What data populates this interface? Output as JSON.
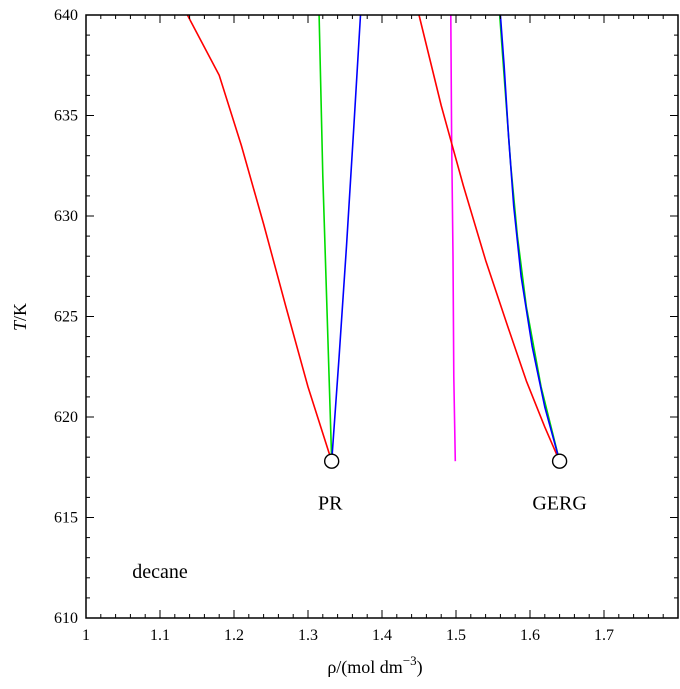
{
  "chart_data": {
    "type": "line",
    "xlabel": "ρ/(mol dm",
    "xlabel_sup": "−3",
    "xlabel_close": ")",
    "ylabel_italic": "T",
    "ylabel_rest": "/K",
    "xlim": [
      1,
      1.8
    ],
    "ylim": [
      610,
      640
    ],
    "xticks": [
      1,
      1.1,
      1.2,
      1.3,
      1.4,
      1.5,
      1.6,
      1.7
    ],
    "xtick_labels": [
      "1",
      "1.1",
      "1.2",
      "1.3",
      "1.4",
      "1.5",
      "1.6",
      "1.7"
    ],
    "yticks": [
      610,
      615,
      620,
      625,
      630,
      635,
      640
    ],
    "ytick_labels": [
      "610",
      "615",
      "620",
      "625",
      "630",
      "635",
      "640"
    ],
    "grid": false,
    "annotations": [
      {
        "text": "decane",
        "x": 1.1,
        "y": 612.0
      },
      {
        "text": "PR",
        "x": 1.33,
        "y": 615.4
      },
      {
        "text": "GERG",
        "x": 1.64,
        "y": 615.4
      }
    ],
    "critical_points": [
      {
        "x": 1.332,
        "y": 617.8
      },
      {
        "x": 1.64,
        "y": 617.8
      }
    ],
    "series": [
      {
        "color": "#ff0000",
        "x": [
          1.332,
          1.3,
          1.27,
          1.24,
          1.21,
          1.18,
          1.137
        ],
        "y": [
          617.8,
          621.5,
          625.5,
          629.6,
          633.5,
          637.0,
          640
        ]
      },
      {
        "color": "#00dd00",
        "x": [
          1.332,
          1.326,
          1.32,
          1.315
        ],
        "y": [
          617.8,
          625.0,
          632.0,
          640
        ]
      },
      {
        "color": "#0000ff",
        "x": [
          1.332,
          1.342,
          1.352,
          1.362,
          1.371
        ],
        "y": [
          617.8,
          623.0,
          628.5,
          634.5,
          640
        ]
      },
      {
        "color": "#ff00ff",
        "x": [
          1.499,
          1.497,
          1.496,
          1.494,
          1.493
        ],
        "y": [
          617.8,
          622.0,
          628.0,
          634.0,
          640
        ]
      },
      {
        "color": "#ff0000",
        "x": [
          1.64,
          1.62,
          1.595,
          1.57,
          1.54,
          1.51,
          1.48,
          1.45
        ],
        "y": [
          617.8,
          619.5,
          621.8,
          624.5,
          627.8,
          631.5,
          635.5,
          640
        ]
      },
      {
        "color": "#00dd00",
        "x": [
          1.64,
          1.615,
          1.595,
          1.583,
          1.574,
          1.568,
          1.563,
          1.559
        ],
        "y": [
          617.8,
          621.5,
          625.5,
          629.0,
          632.5,
          635.5,
          638.0,
          640
        ]
      },
      {
        "color": "#0000ff",
        "x": [
          1.64,
          1.62,
          1.603,
          1.588,
          1.578,
          1.571,
          1.565,
          1.56
        ],
        "y": [
          617.8,
          620.5,
          623.5,
          627.0,
          630.5,
          634.0,
          637.5,
          640
        ]
      }
    ]
  }
}
